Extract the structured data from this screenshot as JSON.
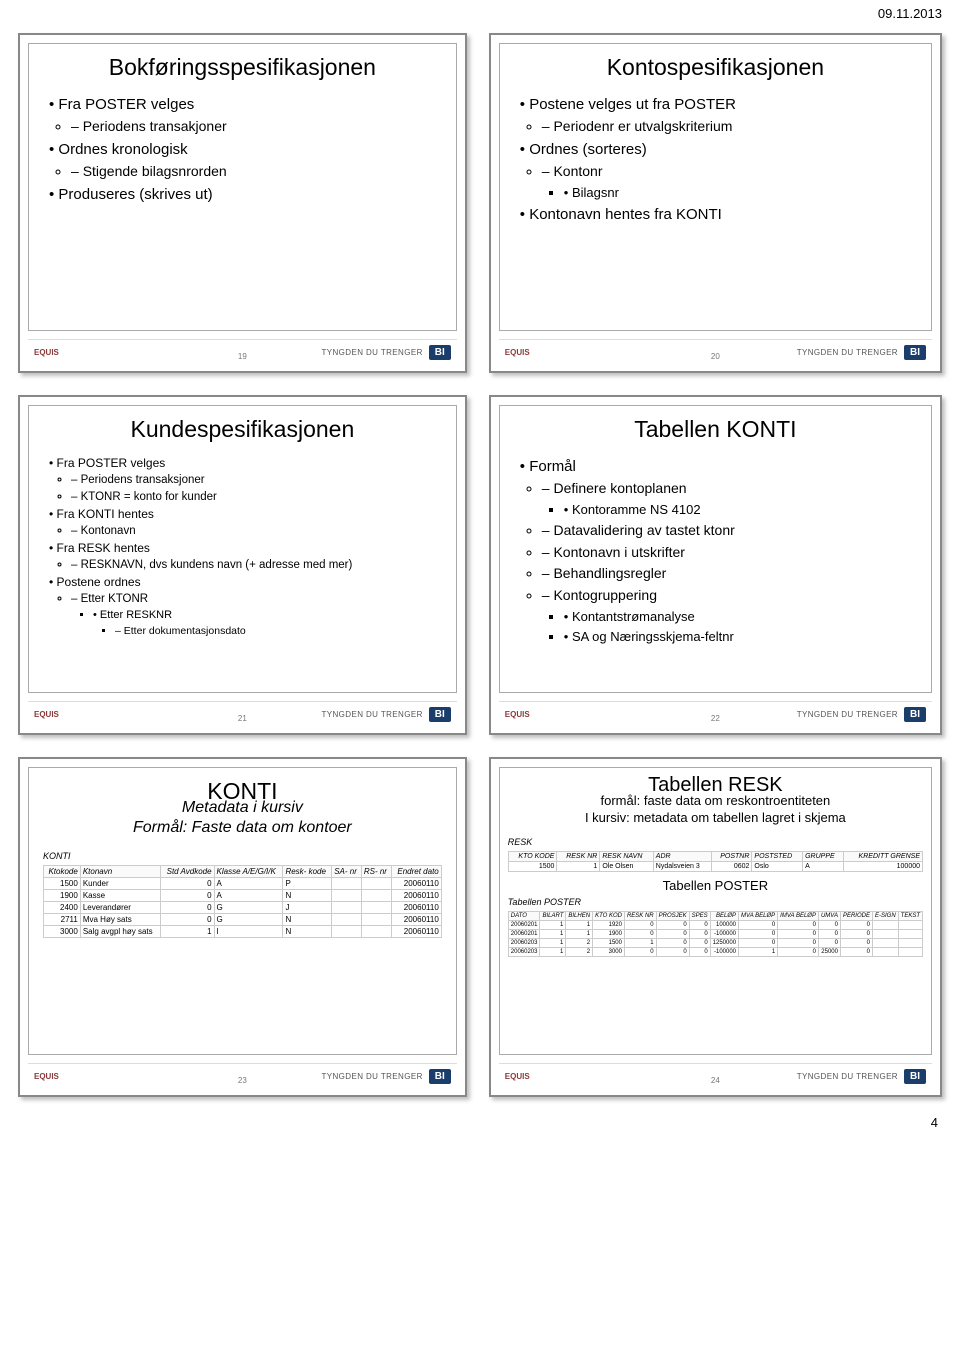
{
  "page": {
    "date": "09.11.2013",
    "number": "4"
  },
  "footer": {
    "equis": "EQUIS",
    "trenger": "TYNGDEN DU TRENGER",
    "bi": "BI"
  },
  "slides": {
    "s1": {
      "num": "19",
      "title": "Bokføringsspesifikasjonen",
      "b1": "Fra POSTER velges",
      "b1a": "Periodens transakjoner",
      "b2": "Ordnes kronologisk",
      "b2a": "Stigende bilagsnrorden",
      "b3": "Produseres (skrives ut)"
    },
    "s2": {
      "num": "20",
      "title": "Kontospesifikasjonen",
      "b1": "Postene velges ut fra POSTER",
      "b1a": "Periodenr er utvalgskriterium",
      "b2": "Ordnes (sorteres)",
      "b2a": "Kontonr",
      "b2a1": "Bilagsnr",
      "b3": "Kontonavn hentes fra KONTI"
    },
    "s3": {
      "num": "21",
      "title": "Kundespesifikasjonen",
      "b1": "Fra POSTER velges",
      "b1a": "Periodens transaksjoner",
      "b1b": "KTONR = konto for kunder",
      "b2": "Fra KONTI hentes",
      "b2a": "Kontonavn",
      "b3": "Fra RESK hentes",
      "b3a": "RESKNAVN, dvs kundens navn (+ adresse med mer)",
      "b4": "Postene ordnes",
      "b4a": "Etter KTONR",
      "b4a1": "Etter RESKNR",
      "b4a1a": "Etter dokumentasjonsdato"
    },
    "s4": {
      "num": "22",
      "title": "Tabellen KONTI",
      "b1": "Formål",
      "b1a": "Definere kontoplanen",
      "b1a1": "Kontoramme NS 4102",
      "b1b": "Datavalidering av tastet ktonr",
      "b1c": "Kontonavn i utskrifter",
      "b1d": "Behandlingsregler",
      "b1e": "Kontogruppering",
      "b1e1": "Kontantstrømanalyse",
      "b1e2": "SA og Næringsskjema-feltnr"
    },
    "s5": {
      "num": "23",
      "title_l1": "KONTI",
      "title_l2": "Metadata i kursiv",
      "title_l3": "Formål: Faste data om kontoer",
      "table_label": "KONTI",
      "headers": [
        "Ktokode",
        "Ktonavn",
        "Std Avdkode",
        "Klasse A/E/G/I/K",
        "Resk- kode",
        "SA- nr",
        "RS- nr",
        "Endret dato"
      ],
      "rows": [
        [
          "1500",
          "Kunder",
          "0",
          "A",
          "P",
          "",
          "",
          "20060110"
        ],
        [
          "1900",
          "Kasse",
          "0",
          "A",
          "N",
          "",
          "",
          "20060110"
        ],
        [
          "2400",
          "Leverandører",
          "0",
          "G",
          "J",
          "",
          "",
          "20060110"
        ],
        [
          "2711",
          "Mva Høy sats",
          "0",
          "G",
          "N",
          "",
          "",
          "20060110"
        ],
        [
          "3000",
          "Salg avgpl høy sats",
          "1",
          "I",
          "N",
          "",
          "",
          "20060110"
        ]
      ]
    },
    "s6": {
      "num": "24",
      "title": "Tabellen RESK",
      "sub1": "formål: faste data om reskontroentiteten",
      "sub2": "I kursiv: metadata om tabellen lagret i skjema",
      "resk_label": "RESK",
      "resk_headers": [
        "KTO KODE",
        "RESK NR",
        "RESK NAVN",
        "ADR",
        "POSTNR",
        "POSTSTED",
        "GRUPPE",
        "KREDITT GRENSE"
      ],
      "resk_rows": [
        [
          "1500",
          "1",
          "Ole Olsen",
          "Nydalsveien 3",
          "0602",
          "Oslo",
          "A",
          "100000"
        ]
      ],
      "poster_caption": "Tabellen POSTER",
      "poster_label": "Tabellen POSTER",
      "poster_headers": [
        "DATO",
        "BILART",
        "BILHEN",
        "KTO KOD",
        "RESK NR",
        "PROSJEK",
        "SPES",
        "BELØP",
        "MVA BELØP",
        "IMVA BELØP",
        "UMVA",
        "PERIODE",
        "E-SIGN",
        "TEKST"
      ],
      "poster_rows": [
        [
          "20060201",
          "1",
          "1",
          "1920",
          "0",
          "0",
          "0",
          "100000",
          "0",
          "0",
          "0",
          "0",
          "",
          ""
        ],
        [
          "20060201",
          "1",
          "1",
          "1900",
          "0",
          "0",
          "0",
          "-100000",
          "0",
          "0",
          "0",
          "0",
          "",
          ""
        ],
        [
          "20060203",
          "1",
          "2",
          "1500",
          "1",
          "0",
          "0",
          "1250000",
          "0",
          "0",
          "0",
          "0",
          "",
          ""
        ],
        [
          "20060203",
          "1",
          "2",
          "3000",
          "0",
          "0",
          "0",
          "-100000",
          "1",
          "0",
          "25000",
          "0",
          "",
          ""
        ]
      ]
    }
  }
}
